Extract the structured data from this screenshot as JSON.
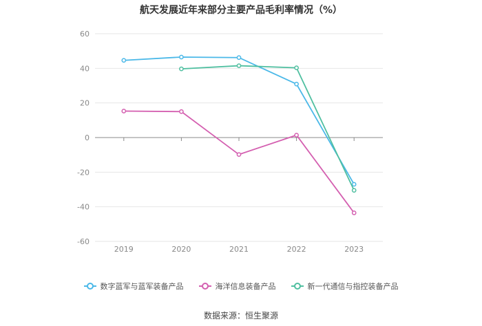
{
  "chart_data": {
    "type": "line",
    "title": "航天发展近年来部分主要产品毛利率情况（%）",
    "categories": [
      "2019",
      "2020",
      "2021",
      "2022",
      "2023"
    ],
    "ylim": [
      -60,
      60
    ],
    "yticks": [
      "60",
      "40",
      "20",
      "0",
      "-20",
      "-40",
      "-60"
    ],
    "grid": true,
    "legend_position": "bottom",
    "series": [
      {
        "name": "数字蓝军与蓝军装备产品",
        "color": "#4ab8e8",
        "values": [
          44.6,
          46.5,
          46.2,
          30.9,
          -27.0
        ]
      },
      {
        "name": "海洋信息装备产品",
        "color": "#d45fb0",
        "values": [
          15.3,
          15.0,
          -9.8,
          1.4,
          -43.5
        ]
      },
      {
        "name": "新一代通信与指控装备产品",
        "color": "#4fbfa0",
        "values": [
          null,
          39.7,
          41.5,
          40.3,
          -30.5
        ]
      }
    ]
  },
  "source": "数据来源：恒生聚源"
}
